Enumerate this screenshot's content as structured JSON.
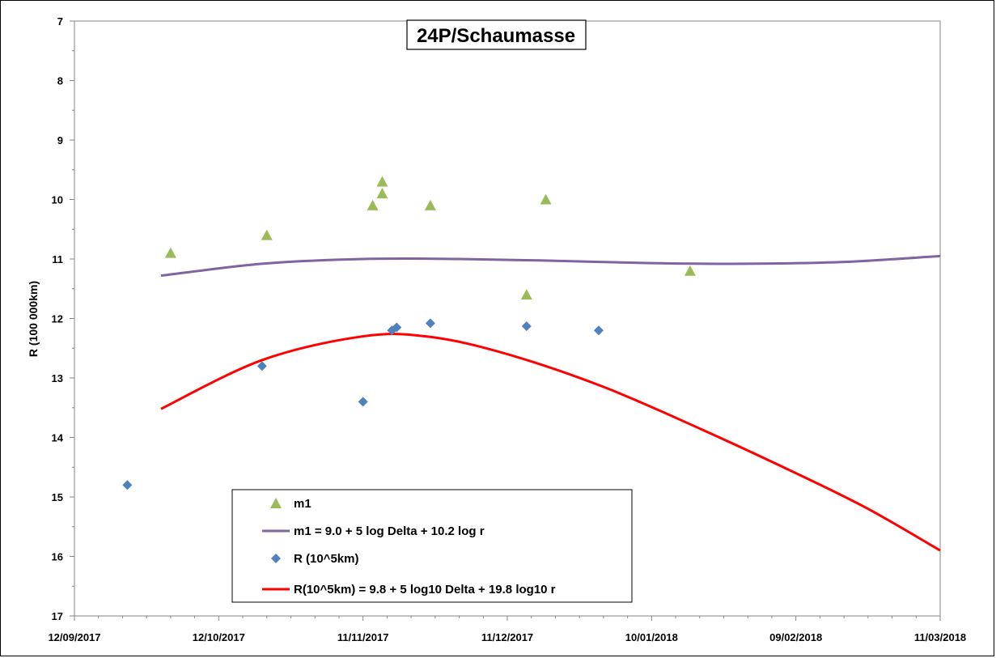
{
  "chart_data": {
    "type": "scatter",
    "title": "24P/Schaumasse",
    "xlabel": "",
    "ylabel": "R (100 000km)",
    "x_axis_type": "date",
    "xlim": [
      "2017-09-12",
      "2018-03-11"
    ],
    "ylim": [
      7,
      17
    ],
    "y_inverted": true,
    "x_tick_labels": [
      "12/09/2017",
      "12/10/2017",
      "11/11/2017",
      "11/12/2017",
      "10/01/2018",
      "09/02/2018",
      "11/03/2018"
    ],
    "x_ticks": [
      "2017-09-12",
      "2017-10-12",
      "2017-11-11",
      "2017-12-11",
      "2018-01-10",
      "2018-02-09",
      "2018-03-11"
    ],
    "y_ticks": [
      7,
      8,
      9,
      10,
      11,
      12,
      13,
      14,
      15,
      16,
      17
    ],
    "grid": false,
    "legend_placement": "bottom-left",
    "series": [
      {
        "name": "m1",
        "kind": "points",
        "marker": "triangle",
        "color": "#9BBB59",
        "points": [
          {
            "x": "2017-10-02",
            "y": 10.9
          },
          {
            "x": "2017-10-22",
            "y": 10.6
          },
          {
            "x": "2017-11-13",
            "y": 10.1
          },
          {
            "x": "2017-11-15",
            "y": 9.7
          },
          {
            "x": "2017-11-15",
            "y": 9.9
          },
          {
            "x": "2017-11-25",
            "y": 10.1
          },
          {
            "x": "2017-12-15",
            "y": 11.6
          },
          {
            "x": "2017-12-19",
            "y": 10.0
          },
          {
            "x": "2018-01-18",
            "y": 11.2
          }
        ]
      },
      {
        "name": "m1 = 9.0 + 5 log Delta + 10.2 log r",
        "kind": "line",
        "color": "#8064A2",
        "points": [
          {
            "x": "2017-09-30",
            "y": 11.28
          },
          {
            "x": "2017-10-21",
            "y": 11.08
          },
          {
            "x": "2017-11-11",
            "y": 11.0
          },
          {
            "x": "2017-12-01",
            "y": 11.0
          },
          {
            "x": "2017-12-21",
            "y": 11.03
          },
          {
            "x": "2018-01-10",
            "y": 11.07
          },
          {
            "x": "2018-01-30",
            "y": 11.08
          },
          {
            "x": "2018-02-19",
            "y": 11.05
          },
          {
            "x": "2018-03-11",
            "y": 10.95
          }
        ]
      },
      {
        "name": "R (10^5km)",
        "kind": "points",
        "marker": "diamond",
        "color": "#4F81BD",
        "points": [
          {
            "x": "2017-09-23",
            "y": 14.8
          },
          {
            "x": "2017-10-21",
            "y": 12.8
          },
          {
            "x": "2017-11-11",
            "y": 13.4
          },
          {
            "x": "2017-11-17",
            "y": 12.2
          },
          {
            "x": "2017-11-18",
            "y": 12.15
          },
          {
            "x": "2017-11-25",
            "y": 12.08
          },
          {
            "x": "2017-12-15",
            "y": 12.13
          },
          {
            "x": "2017-12-30",
            "y": 12.2
          }
        ]
      },
      {
        "name": "R(10^5km) = 9.8 + 5 log10 Delta + 19.8 log10 r",
        "kind": "line",
        "color": "#FF0000",
        "points": [
          {
            "x": "2017-09-30",
            "y": 13.52
          },
          {
            "x": "2017-10-21",
            "y": 12.7
          },
          {
            "x": "2017-11-11",
            "y": 12.3
          },
          {
            "x": "2017-11-25",
            "y": 12.31
          },
          {
            "x": "2017-12-11",
            "y": 12.6
          },
          {
            "x": "2017-12-31",
            "y": 13.15
          },
          {
            "x": "2018-01-20",
            "y": 13.85
          },
          {
            "x": "2018-02-09",
            "y": 14.6
          },
          {
            "x": "2018-02-24",
            "y": 15.2
          },
          {
            "x": "2018-03-11",
            "y": 15.9
          }
        ]
      }
    ]
  }
}
